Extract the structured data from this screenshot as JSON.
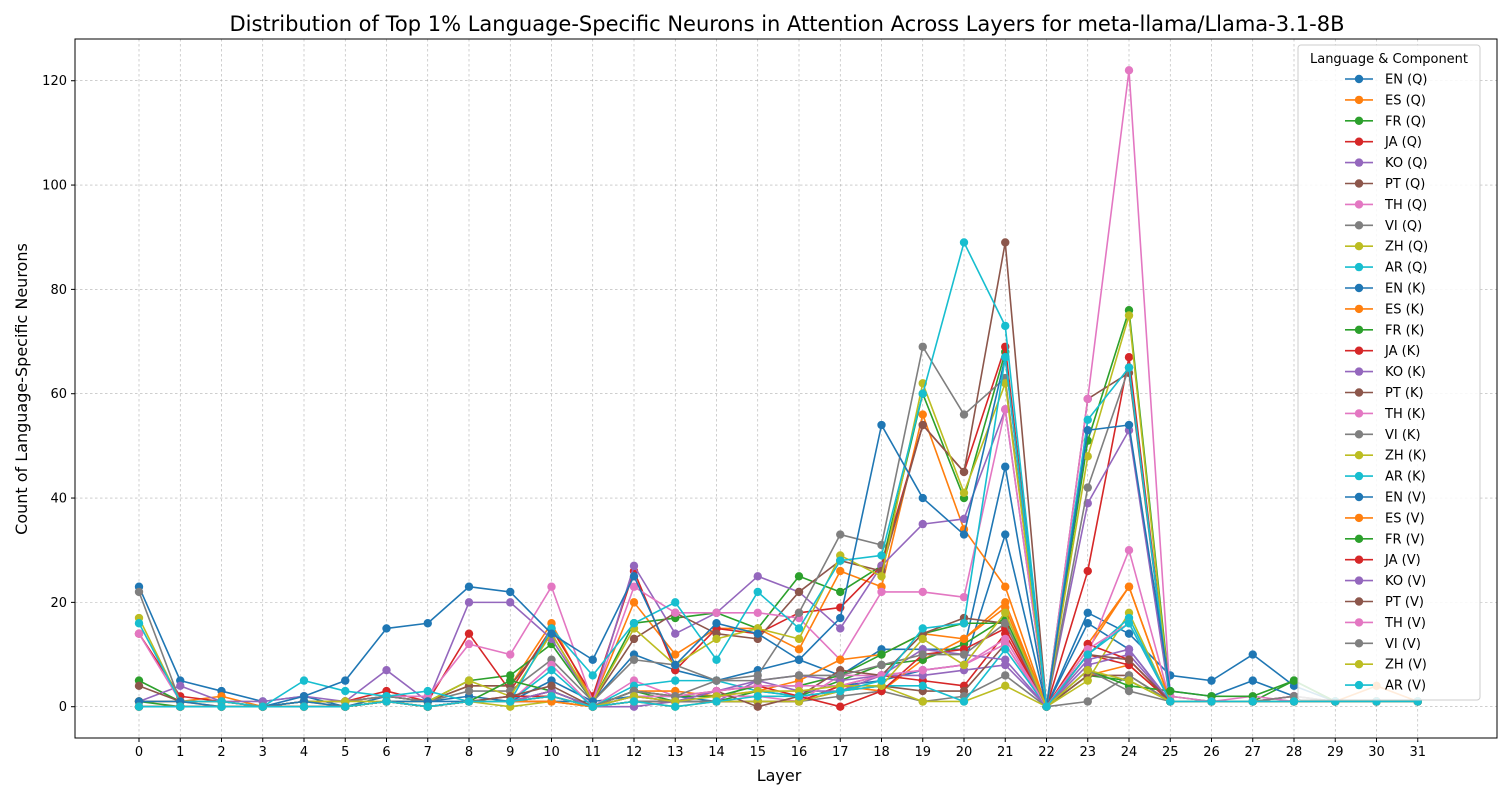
{
  "chart_data": {
    "type": "line",
    "title": "Distribution of Top 1% Language-Specific Neurons in Attention Across Layers for meta-llama/Llama-3.1-8B",
    "xlabel": "Layer",
    "ylabel": "Count of Language-Specific Neurons",
    "x": [
      0,
      1,
      2,
      3,
      4,
      5,
      6,
      7,
      8,
      9,
      10,
      11,
      12,
      13,
      14,
      15,
      16,
      17,
      18,
      19,
      20,
      21,
      22,
      23,
      24,
      25,
      26,
      27,
      28,
      29,
      30,
      31
    ],
    "xticks": [
      "0",
      "1",
      "2",
      "3",
      "4",
      "5",
      "6",
      "7",
      "8",
      "9",
      "10",
      "11",
      "12",
      "13",
      "14",
      "15",
      "16",
      "17",
      "18",
      "19",
      "20",
      "21",
      "22",
      "23",
      "24",
      "25",
      "26",
      "27",
      "28",
      "29",
      "30",
      "31"
    ],
    "ylim": [
      -6,
      128
    ],
    "yticks": [
      0,
      20,
      40,
      60,
      80,
      100,
      120
    ],
    "ytick_labels": [
      "0",
      "20",
      "40",
      "60",
      "80",
      "100",
      "120"
    ],
    "grid": true,
    "legend": {
      "title": "Language & Component",
      "position": "top-right"
    },
    "colors": [
      "#1f77b4",
      "#ff7f0e",
      "#2ca02c",
      "#d62728",
      "#9467bd",
      "#8c564b",
      "#e377c2",
      "#7f7f7f",
      "#bcbd22",
      "#17becf"
    ],
    "series": [
      {
        "name": "EN (Q)",
        "values": [
          23,
          5,
          3,
          1,
          2,
          0,
          2,
          1,
          2,
          1,
          5,
          1,
          10,
          7,
          5,
          7,
          9,
          6,
          11,
          11,
          11,
          46,
          0,
          18,
          14,
          6,
          5,
          10,
          4,
          1,
          1,
          1
        ]
      },
      {
        "name": "ES (Q)",
        "values": [
          1,
          1,
          2,
          0,
          1,
          0,
          1,
          1,
          4,
          4,
          16,
          1,
          20,
          10,
          15,
          15,
          11,
          26,
          23,
          56,
          34,
          23,
          0,
          11,
          23,
          1,
          1,
          1,
          2,
          1,
          4,
          1
        ]
      },
      {
        "name": "FR (Q)",
        "values": [
          5,
          1,
          1,
          0,
          1,
          1,
          2,
          1,
          5,
          6,
          12,
          1,
          16,
          17,
          18,
          15,
          25,
          22,
          27,
          60,
          40,
          68,
          0,
          51,
          76,
          2,
          1,
          1,
          5,
          1,
          1,
          1
        ]
      },
      {
        "name": "JA (Q)",
        "values": [
          14,
          2,
          1,
          0,
          1,
          1,
          3,
          1,
          14,
          3,
          15,
          2,
          26,
          7,
          15,
          14,
          18,
          19,
          27,
          54,
          45,
          69,
          0,
          26,
          67,
          1,
          1,
          1,
          1,
          1,
          1,
          1
        ]
      },
      {
        "name": "KO (Q)",
        "values": [
          1,
          4,
          1,
          1,
          2,
          1,
          7,
          1,
          20,
          20,
          13,
          1,
          27,
          14,
          18,
          25,
          22,
          15,
          27,
          35,
          36,
          57,
          0,
          39,
          53,
          1,
          1,
          1,
          1,
          1,
          1,
          1
        ]
      },
      {
        "name": "PT (Q)",
        "values": [
          4,
          1,
          1,
          0,
          1,
          1,
          2,
          1,
          4,
          4,
          14,
          1,
          13,
          18,
          14,
          13,
          22,
          28,
          26,
          54,
          45,
          89,
          0,
          59,
          64,
          1,
          1,
          1,
          1,
          1,
          1,
          1
        ]
      },
      {
        "name": "TH (Q)",
        "values": [
          14,
          1,
          1,
          0,
          1,
          1,
          2,
          2,
          12,
          10,
          23,
          1,
          23,
          18,
          18,
          18,
          17,
          9,
          22,
          22,
          21,
          57,
          0,
          59,
          122,
          2,
          1,
          2,
          1,
          1,
          1,
          1
        ]
      },
      {
        "name": "VI (Q)",
        "values": [
          22,
          1,
          1,
          0,
          1,
          1,
          2,
          1,
          3,
          3,
          9,
          1,
          9,
          8,
          5,
          6,
          18,
          33,
          31,
          69,
          56,
          63,
          0,
          42,
          65,
          1,
          1,
          1,
          1,
          1,
          1,
          1
        ]
      },
      {
        "name": "ZH (Q)",
        "values": [
          17,
          1,
          1,
          0,
          1,
          1,
          1,
          1,
          5,
          2,
          14,
          1,
          15,
          8,
          13,
          15,
          13,
          29,
          25,
          62,
          41,
          62,
          0,
          48,
          75,
          1,
          1,
          1,
          1,
          1,
          1,
          1
        ]
      },
      {
        "name": "AR (Q)",
        "values": [
          16,
          1,
          1,
          0,
          5,
          3,
          2,
          3,
          1,
          1,
          15,
          6,
          16,
          20,
          9,
          22,
          15,
          28,
          29,
          60,
          89,
          73,
          0,
          55,
          65,
          1,
          1,
          1,
          1,
          1,
          1,
          1
        ]
      },
      {
        "name": "EN (K)",
        "values": [
          0,
          0,
          0,
          0,
          1,
          0,
          1,
          1,
          1,
          1,
          1,
          1,
          2,
          2,
          1,
          1,
          1,
          4,
          5,
          7,
          8,
          33,
          0,
          16,
          11,
          1,
          1,
          1,
          1,
          1,
          1,
          1
        ]
      },
      {
        "name": "ES (K)",
        "values": [
          1,
          1,
          0,
          0,
          0,
          0,
          1,
          0,
          1,
          1,
          2,
          0,
          1,
          1,
          1,
          1,
          1,
          4,
          3,
          9,
          13,
          20,
          0,
          6,
          8,
          1,
          1,
          1,
          1,
          1,
          1,
          1
        ]
      },
      {
        "name": "FR (K)",
        "values": [
          1,
          0,
          0,
          0,
          0,
          0,
          1,
          0,
          1,
          1,
          2,
          0,
          3,
          1,
          1,
          3,
          2,
          5,
          8,
          9,
          12,
          17,
          0,
          6,
          5,
          1,
          1,
          1,
          1,
          1,
          1,
          1
        ]
      },
      {
        "name": "JA (K)",
        "values": [
          0,
          0,
          0,
          0,
          0,
          0,
          1,
          0,
          1,
          1,
          1,
          0,
          1,
          1,
          1,
          1,
          1,
          4,
          6,
          5,
          4,
          14,
          0,
          10,
          8,
          1,
          1,
          1,
          1,
          1,
          1,
          1
        ]
      },
      {
        "name": "KO (K)",
        "values": [
          0,
          0,
          0,
          0,
          0,
          0,
          1,
          0,
          1,
          1,
          3,
          0,
          0,
          1,
          1,
          5,
          3,
          3,
          6,
          6,
          7,
          8,
          0,
          8,
          10,
          1,
          1,
          1,
          1,
          1,
          1,
          1
        ]
      },
      {
        "name": "PT (K)",
        "values": [
          0,
          0,
          0,
          0,
          0,
          0,
          1,
          0,
          1,
          1,
          3,
          0,
          1,
          1,
          1,
          1,
          1,
          3,
          4,
          3,
          3,
          12,
          0,
          6,
          6,
          1,
          1,
          1,
          1,
          1,
          1,
          1
        ]
      },
      {
        "name": "TH (K)",
        "values": [
          0,
          0,
          0,
          0,
          0,
          0,
          1,
          0,
          1,
          1,
          8,
          0,
          5,
          2,
          2,
          2,
          1,
          6,
          6,
          7,
          8,
          12,
          0,
          10,
          30,
          1,
          1,
          1,
          2,
          1,
          1,
          1
        ]
      },
      {
        "name": "VI (K)",
        "values": [
          0,
          0,
          0,
          0,
          0,
          0,
          1,
          0,
          1,
          1,
          2,
          0,
          1,
          1,
          1,
          1,
          1,
          2,
          3,
          1,
          2,
          6,
          0,
          1,
          6,
          1,
          1,
          1,
          1,
          1,
          1,
          1
        ]
      },
      {
        "name": "ZH (K)",
        "values": [
          0,
          0,
          0,
          0,
          0,
          0,
          1,
          0,
          1,
          0,
          1,
          0,
          1,
          0,
          1,
          1,
          1,
          3,
          4,
          1,
          1,
          4,
          0,
          5,
          18,
          1,
          1,
          1,
          1,
          1,
          1,
          1
        ]
      },
      {
        "name": "AR (K)",
        "values": [
          0,
          0,
          0,
          0,
          0,
          0,
          1,
          0,
          1,
          1,
          7,
          0,
          4,
          5,
          5,
          3,
          2,
          3,
          4,
          4,
          1,
          11,
          0,
          10,
          17,
          1,
          1,
          1,
          1,
          1,
          1,
          1
        ]
      },
      {
        "name": "EN (V)",
        "values": [
          1,
          1,
          0,
          0,
          2,
          5,
          15,
          16,
          23,
          22,
          14,
          9,
          25,
          8,
          16,
          14,
          9,
          17,
          54,
          40,
          33,
          67,
          0,
          53,
          54,
          3,
          2,
          5,
          2,
          1,
          1,
          1
        ]
      },
      {
        "name": "ES (V)",
        "values": [
          0,
          0,
          0,
          0,
          0,
          0,
          1,
          0,
          1,
          1,
          1,
          0,
          3,
          3,
          2,
          3,
          5,
          9,
          10,
          14,
          13,
          19,
          0,
          12,
          23,
          1,
          1,
          1,
          1,
          1,
          1,
          1
        ]
      },
      {
        "name": "FR (V)",
        "values": [
          0,
          0,
          0,
          0,
          0,
          0,
          1,
          0,
          1,
          5,
          3,
          0,
          3,
          2,
          2,
          4,
          4,
          6,
          10,
          14,
          16,
          16,
          0,
          7,
          4,
          3,
          2,
          2,
          5,
          1,
          1,
          1
        ]
      },
      {
        "name": "JA (V)",
        "values": [
          0,
          0,
          0,
          0,
          0,
          0,
          1,
          0,
          1,
          2,
          2,
          0,
          2,
          1,
          3,
          4,
          2,
          0,
          3,
          10,
          11,
          15,
          0,
          12,
          9,
          1,
          1,
          1,
          1,
          1,
          1,
          1
        ]
      },
      {
        "name": "KO (V)",
        "values": [
          0,
          0,
          0,
          0,
          0,
          0,
          1,
          0,
          1,
          1,
          3,
          0,
          2,
          1,
          3,
          5,
          6,
          5,
          6,
          11,
          10,
          9,
          0,
          9,
          11,
          1,
          1,
          1,
          1,
          1,
          1,
          1
        ]
      },
      {
        "name": "PT (V)",
        "values": [
          0,
          0,
          0,
          0,
          0,
          0,
          1,
          0,
          1,
          2,
          4,
          0,
          3,
          2,
          3,
          0,
          2,
          7,
          6,
          14,
          17,
          16,
          0,
          10,
          9,
          1,
          1,
          1,
          2,
          1,
          1,
          1
        ]
      },
      {
        "name": "TH (V)",
        "values": [
          0,
          0,
          0,
          0,
          0,
          0,
          1,
          0,
          1,
          1,
          2,
          0,
          2,
          2,
          3,
          4,
          4,
          4,
          6,
          7,
          8,
          13,
          0,
          11,
          16,
          1,
          1,
          1,
          2,
          1,
          1,
          1
        ]
      },
      {
        "name": "VI (V)",
        "values": [
          0,
          0,
          0,
          0,
          0,
          0,
          1,
          0,
          1,
          1,
          2,
          0,
          3,
          2,
          5,
          5,
          6,
          6,
          8,
          10,
          10,
          16,
          0,
          7,
          3,
          1,
          1,
          1,
          2,
          1,
          1,
          1
        ]
      },
      {
        "name": "ZH (V)",
        "values": [
          0,
          0,
          0,
          0,
          0,
          0,
          1,
          0,
          1,
          1,
          2,
          0,
          2,
          1,
          2,
          3,
          3,
          4,
          4,
          13,
          8,
          18,
          0,
          7,
          5,
          1,
          1,
          1,
          1,
          1,
          1,
          1
        ]
      },
      {
        "name": "AR (V)",
        "values": [
          0,
          0,
          0,
          0,
          0,
          0,
          1,
          0,
          1,
          1,
          2,
          0,
          1,
          0,
          1,
          2,
          2,
          3,
          5,
          15,
          16,
          67,
          0,
          10,
          16,
          1,
          1,
          1,
          1,
          1,
          1,
          1
        ]
      }
    ]
  }
}
